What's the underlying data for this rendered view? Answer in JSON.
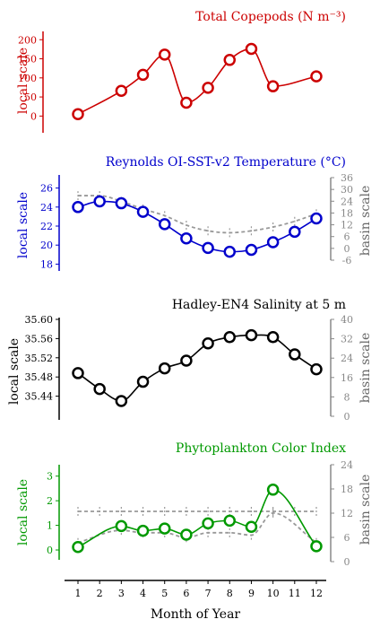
{
  "x_axis": {
    "label": "Month of Year",
    "ticks": [
      "1",
      "2",
      "3",
      "4",
      "5",
      "6",
      "7",
      "8",
      "9",
      "10",
      "11",
      "12"
    ]
  },
  "chart_data": [
    {
      "type": "line",
      "title": "Total Copepods (N m⁻³)",
      "color": "#cc0000",
      "ylabel": "local scale",
      "ylim": [
        -25,
        210
      ],
      "yticks": [
        "0",
        "50",
        "100",
        "150",
        "200"
      ],
      "ytick_values": [
        0,
        50,
        100,
        150,
        200
      ],
      "x": [
        1,
        3,
        4,
        5,
        6,
        7,
        8,
        9,
        10,
        12
      ],
      "series": [
        {
          "values": [
            5,
            66,
            108,
            161,
            35,
            74,
            147,
            176,
            78,
            104
          ]
        }
      ]
    },
    {
      "type": "line",
      "title": "Reynolds OI-SST-v2 Temperature (°C)",
      "color": "#0000cc",
      "ylabel": "local scale",
      "ylabel_right": "basin scale",
      "ylim": [
        17,
        27
      ],
      "yticks": [
        "18",
        "20",
        "22",
        "24",
        "26"
      ],
      "ytick_values": [
        18,
        20,
        22,
        24,
        26
      ],
      "ylim_right": [
        -6,
        36
      ],
      "yticks_right": [
        "-6",
        "0",
        "6",
        "12",
        "18",
        "24",
        "30",
        "36"
      ],
      "ytick_values_right": [
        -6,
        0,
        6,
        12,
        18,
        24,
        30,
        36
      ],
      "x": [
        1,
        2,
        3,
        4,
        5,
        6,
        7,
        8,
        9,
        10,
        11,
        12
      ],
      "series": [
        {
          "values": [
            24.0,
            24.6,
            24.4,
            23.5,
            22.2,
            20.7,
            19.7,
            19.3,
            19.5,
            20.3,
            21.4,
            22.8
          ]
        },
        {
          "axis": "right",
          "style": "dashed",
          "color": "#999999",
          "values": [
            25.2,
            25.2,
            24.6,
            23.8,
            23.1,
            22.1,
            21.5,
            21.3,
            21.5,
            21.9,
            22.5,
            23.3
          ]
        }
      ]
    },
    {
      "type": "line",
      "title": "Hadley-EN4 Salinity at 5 m",
      "color": "#000000",
      "ylabel": "local scale",
      "ylabel_right": "basin scale",
      "ylim": [
        35.4,
        35.6
      ],
      "yticks": [
        "35.60",
        "35.56",
        "35.52",
        "35.48",
        "35.44"
      ],
      "ytick_values": [
        35.6,
        35.56,
        35.52,
        35.48,
        35.44
      ],
      "ylim_right": [
        0,
        40
      ],
      "yticks_right": [
        "0",
        "8",
        "16",
        "24",
        "32",
        "40"
      ],
      "ytick_values_right": [
        0,
        8,
        16,
        24,
        32,
        40
      ],
      "x": [
        1,
        2,
        3,
        4,
        5,
        6,
        7,
        8,
        9,
        10,
        11,
        12
      ],
      "series": [
        {
          "values": [
            35.488,
            35.455,
            35.43,
            35.47,
            35.498,
            35.514,
            35.55,
            35.563,
            35.567,
            35.563,
            35.527,
            35.496
          ]
        },
        {
          "axis": "right",
          "style": "dashed",
          "color": "#999999",
          "values": [
            35.2,
            35.2,
            35.2,
            35.2,
            35.2,
            35.2,
            35.2,
            35.2,
            35.2,
            35.2,
            35.2,
            35.2
          ]
        }
      ]
    },
    {
      "type": "line",
      "title": "Phytoplankton Color Index",
      "color": "#009900",
      "ylabel": "local scale",
      "ylabel_right": "basin scale",
      "ylim": [
        -0.4,
        3.5
      ],
      "yticks": [
        "0",
        "1",
        "2",
        "3"
      ],
      "ytick_values": [
        0,
        1,
        2,
        3
      ],
      "ylim_right": [
        0,
        24
      ],
      "yticks_right": [
        "0",
        "6",
        "12",
        "18",
        "24"
      ],
      "ytick_values_right": [
        0,
        6,
        12,
        18,
        24
      ],
      "x": [
        1,
        3,
        4,
        5,
        6,
        7,
        8,
        9,
        10,
        12
      ],
      "series": [
        {
          "values": [
            0.12,
            0.97,
            0.78,
            0.87,
            0.62,
            1.08,
            1.19,
            0.94,
            2.45,
            0.15
          ]
        },
        {
          "axis": "right",
          "style": "dashed",
          "color": "#999999",
          "values": [
            0.3,
            0.8,
            0.7,
            0.7,
            0.5,
            0.7,
            0.7,
            0.6,
            1.5,
            0.3
          ]
        }
      ]
    }
  ]
}
